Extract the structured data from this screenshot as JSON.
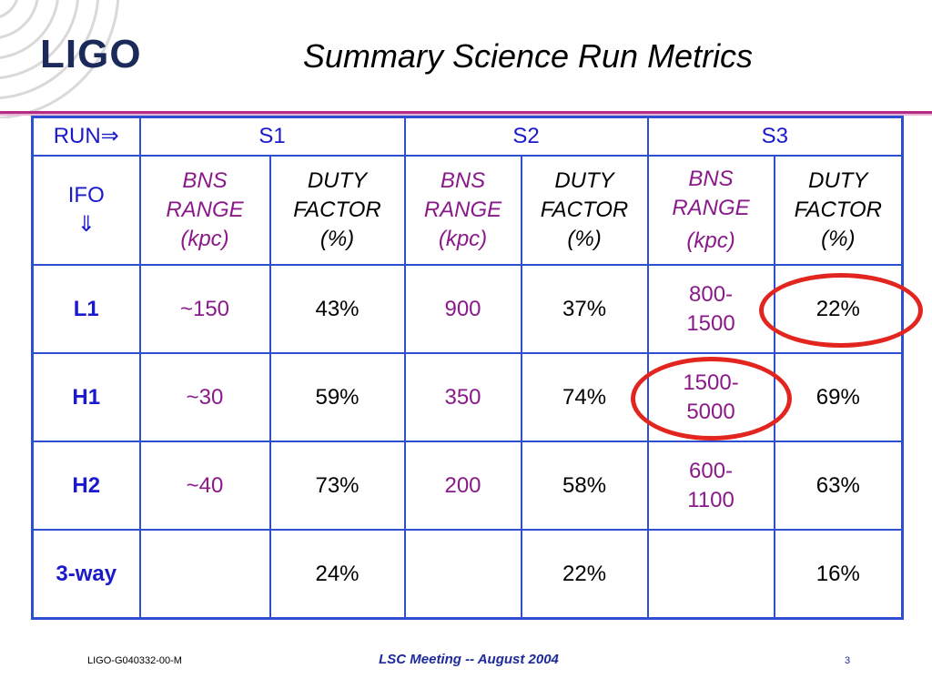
{
  "slide": {
    "logo_text": "LIGO",
    "title": "Summary Science Run Metrics"
  },
  "table": {
    "run_header": "RUN⇒",
    "ifo_header": [
      "IFO",
      "⇓"
    ],
    "runs": [
      "S1",
      "S2",
      "S3"
    ],
    "bns_range_label": [
      "BNS",
      "RANGE",
      "(kpc)"
    ],
    "duty_factor_label": [
      "DUTY",
      "FACTOR",
      "(%)"
    ],
    "rows": [
      {
        "ifo": "L1",
        "s1_range": "~150",
        "s1_duty": "43%",
        "s2_range": "900",
        "s2_duty": "37%",
        "s3_range": [
          "800-",
          "1500"
        ],
        "s3_duty": "22%"
      },
      {
        "ifo": "H1",
        "s1_range": "~30",
        "s1_duty": "59%",
        "s2_range": "350",
        "s2_duty": "74%",
        "s3_range": [
          "1500-",
          "5000"
        ],
        "s3_duty": "69%"
      },
      {
        "ifo": "H2",
        "s1_range": "~40",
        "s1_duty": "73%",
        "s2_range": "200",
        "s2_duty": "58%",
        "s3_range": [
          "600-",
          "1100"
        ],
        "s3_duty": "63%"
      },
      {
        "ifo": "3-way",
        "s1_range": "",
        "s1_duty": "24%",
        "s2_range": "",
        "s2_duty": "22%",
        "s3_range": [
          "",
          ""
        ],
        "s3_duty": "16%"
      }
    ]
  },
  "highlights": [
    "L1 S3 duty factor",
    "H1 S3 BNS range"
  ],
  "colors": {
    "table_border": "#2f4fd3",
    "header_text": "#1a1acc",
    "range_text": "#8a1a8a",
    "highlight": "#e2251e",
    "rule": "#b42c86"
  },
  "footer": {
    "doc_id": "LIGO-G040332-00-M",
    "meeting": "LSC Meeting -- August 2004",
    "page_number": "3"
  }
}
